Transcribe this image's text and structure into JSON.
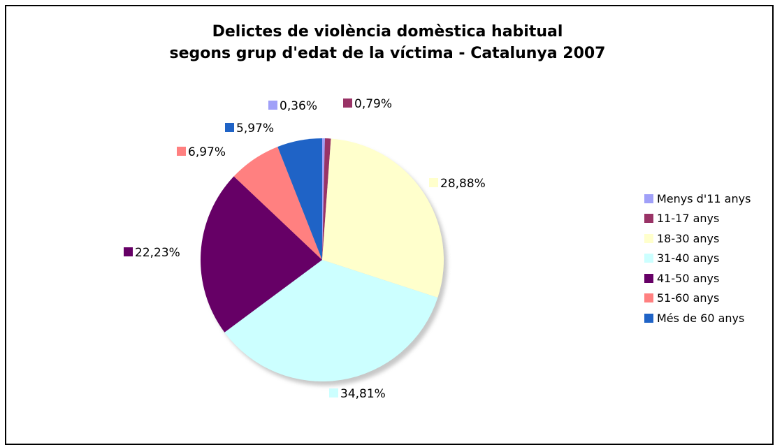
{
  "chart_data": {
    "type": "pie",
    "title": "Delictes de violència domèstica habitual segons grup d'edat de la víctima - Catalunya 2007",
    "title_lines": [
      "Delictes de violència domèstica habitual",
      "segons grup d'edat de la víctima - Catalunya 2007"
    ],
    "start_angle": "top, clockwise",
    "legend_position": "right",
    "slices": [
      {
        "name": "Menys d'11 anys",
        "value": 0.36,
        "label": "0,36%",
        "color": "#a0a0f8"
      },
      {
        "name": "11-17 anys",
        "value": 0.79,
        "label": "0,79%",
        "color": "#993366"
      },
      {
        "name": "18-30 anys",
        "value": 28.88,
        "label": "28,88%",
        "color": "#ffffcc"
      },
      {
        "name": "31-40 anys",
        "value": 34.81,
        "label": "34,81%",
        "color": "#ccffff"
      },
      {
        "name": "41-50 anys",
        "value": 22.23,
        "label": "22,23%",
        "color": "#660066"
      },
      {
        "name": "51-60 anys",
        "value": 6.97,
        "label": "6,97%",
        "color": "#ff8080"
      },
      {
        "name": "Més de 60 anys",
        "value": 5.97,
        "label": "5,97%",
        "color": "#1f63c6"
      }
    ]
  }
}
